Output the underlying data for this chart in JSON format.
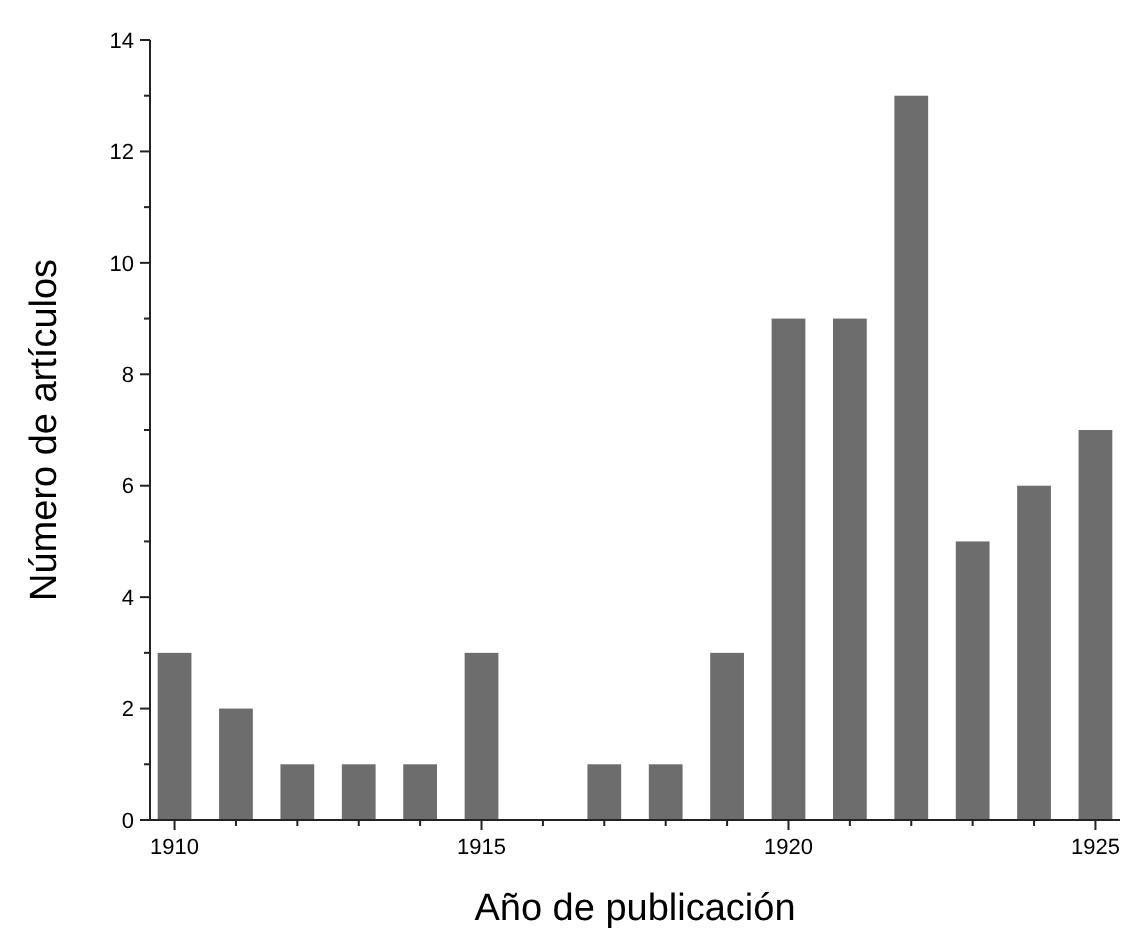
{
  "chart_data": {
    "type": "bar",
    "xlabel": "Año de publicación",
    "ylabel": "Número de artículos",
    "x": [
      1910,
      1911,
      1912,
      1913,
      1914,
      1915,
      1916,
      1917,
      1918,
      1919,
      1920,
      1921,
      1922,
      1923,
      1924,
      1925
    ],
    "values": [
      3,
      2,
      1,
      1,
      1,
      3,
      0,
      1,
      1,
      3,
      9,
      9,
      13,
      5,
      6,
      7
    ],
    "color": "#6d6d6d",
    "xlim": [
      1909.6,
      1925.4
    ],
    "xticks": [
      1910,
      {
        "value": 1911,
        "label": null
      },
      {
        "value": 1912,
        "label": null
      },
      {
        "value": 1913,
        "label": null
      },
      {
        "value": 1914,
        "label": null
      },
      1915,
      {
        "value": 1916,
        "label": null
      },
      {
        "value": 1917,
        "label": null
      },
      {
        "value": 1918,
        "label": null
      },
      {
        "value": 1919,
        "label": null
      },
      1920,
      {
        "value": 1921,
        "label": null
      },
      {
        "value": 1922,
        "label": null
      },
      {
        "value": 1923,
        "label": null
      },
      {
        "value": 1924,
        "label": null
      },
      1925
    ],
    "ylim": [
      0,
      14
    ],
    "yticks": [
      0,
      {
        "value": 1,
        "label": null
      },
      2,
      {
        "value": 3,
        "label": null
      },
      4,
      {
        "value": 5,
        "label": null
      },
      6,
      {
        "value": 7,
        "label": null
      },
      8,
      {
        "value": 9,
        "label": null
      },
      10,
      {
        "value": 11,
        "label": null
      },
      12,
      {
        "value": 13,
        "label": null
      },
      14
    ],
    "grid": false
  }
}
